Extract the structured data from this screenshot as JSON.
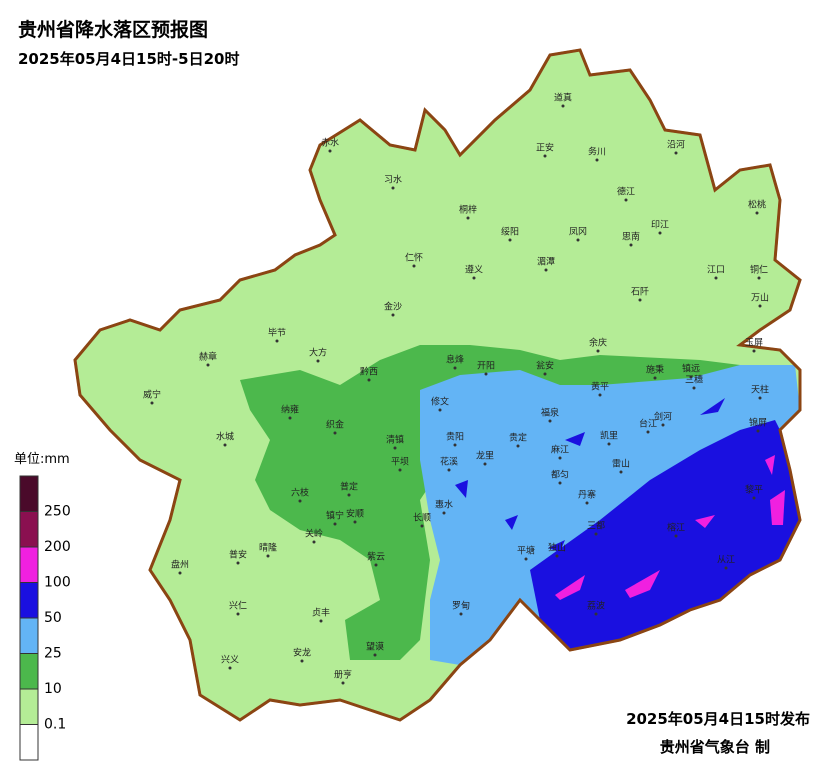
{
  "header": {
    "title": "贵州省降水落区预报图",
    "subtitle": "2025年05月4日15时-5日20时"
  },
  "legend": {
    "unit": "单位:mm",
    "levels": [
      250,
      200,
      100,
      50,
      25,
      10,
      0.1
    ],
    "colors": [
      "#4a0a2a",
      "#8a1050",
      "#f020e0",
      "#1a10e0",
      "#63b4f5",
      "#4cb84c",
      "#b4ec96",
      "#ffffff"
    ]
  },
  "map": {
    "names": [
      "道真",
      "赤水",
      "正安",
      "务川",
      "沿河",
      "习水",
      "德江",
      "桐梓",
      "松桃",
      "绥阳",
      "凤冈",
      "印江",
      "思南",
      "仁怀",
      "遵义",
      "湄潭",
      "江口",
      "铜仁",
      "石阡",
      "万山",
      "金沙",
      "毕节",
      "余庆",
      "玉屏",
      "赫章",
      "大方",
      "息烽",
      "开阳",
      "黔西",
      "瓮安",
      "施秉",
      "镇远",
      "三穗",
      "威宁",
      "黄平",
      "天柱",
      "修文",
      "织金",
      "纳雍",
      "福泉",
      "剑河",
      "锦屏",
      "台江",
      "凯里",
      "水城",
      "清镇",
      "贵阳",
      "贵定",
      "麻江",
      "雷山",
      "龙里",
      "花溪",
      "平坝",
      "六枝",
      "普定",
      "安顺",
      "长顺",
      "惠水",
      "都匀",
      "丹寨",
      "榕江",
      "镇宁",
      "关岭",
      "三都",
      "黎平",
      "紫云",
      "平塘",
      "独山",
      "从江",
      "晴隆",
      "普安",
      "盘州",
      "罗甸",
      "荔波",
      "兴仁",
      "贞丰",
      "望谟",
      "安龙",
      "兴义",
      "册亨"
    ]
  },
  "footer": {
    "issued": "2025年05月4日15时发布",
    "issuer": "贵州省气象台 制"
  }
}
